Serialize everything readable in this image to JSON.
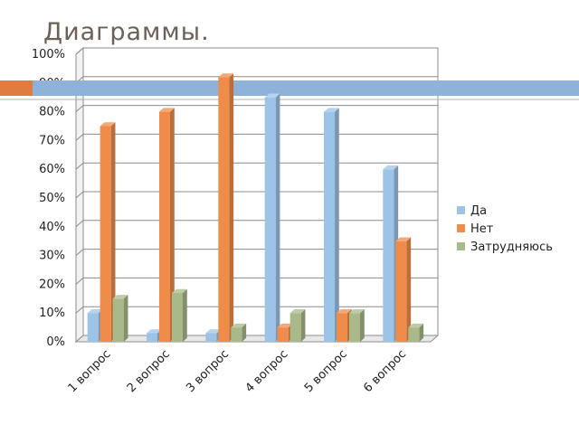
{
  "slide": {
    "title": "Диаграммы."
  },
  "colors": {
    "accent_band": "#8fb3d8",
    "accent_block": "#e07c42",
    "series": [
      "#9dc3e6",
      "#f08c4a",
      "#a9b98a"
    ]
  },
  "chart_data": {
    "type": "bar",
    "categories": [
      "1 вопрос",
      "2 вопрос",
      "3 вопрос",
      "4 вопрос",
      "5 вопрос",
      "6 вопрос"
    ],
    "series": [
      {
        "name": "Да",
        "values": [
          10,
          3,
          3,
          85,
          80,
          60
        ]
      },
      {
        "name": "Нет",
        "values": [
          75,
          80,
          92,
          5,
          10,
          35
        ]
      },
      {
        "name": "Затрудняюсь",
        "values": [
          15,
          17,
          5,
          10,
          10,
          5
        ]
      }
    ],
    "yticks": [
      "0%",
      "10%",
      "20%",
      "30%",
      "40%",
      "50%",
      "60%",
      "70%",
      "80%",
      "90%",
      "100%"
    ],
    "ylim": [
      0,
      100
    ],
    "grid": true,
    "legend_position": "right",
    "style": "3d-clustered"
  }
}
